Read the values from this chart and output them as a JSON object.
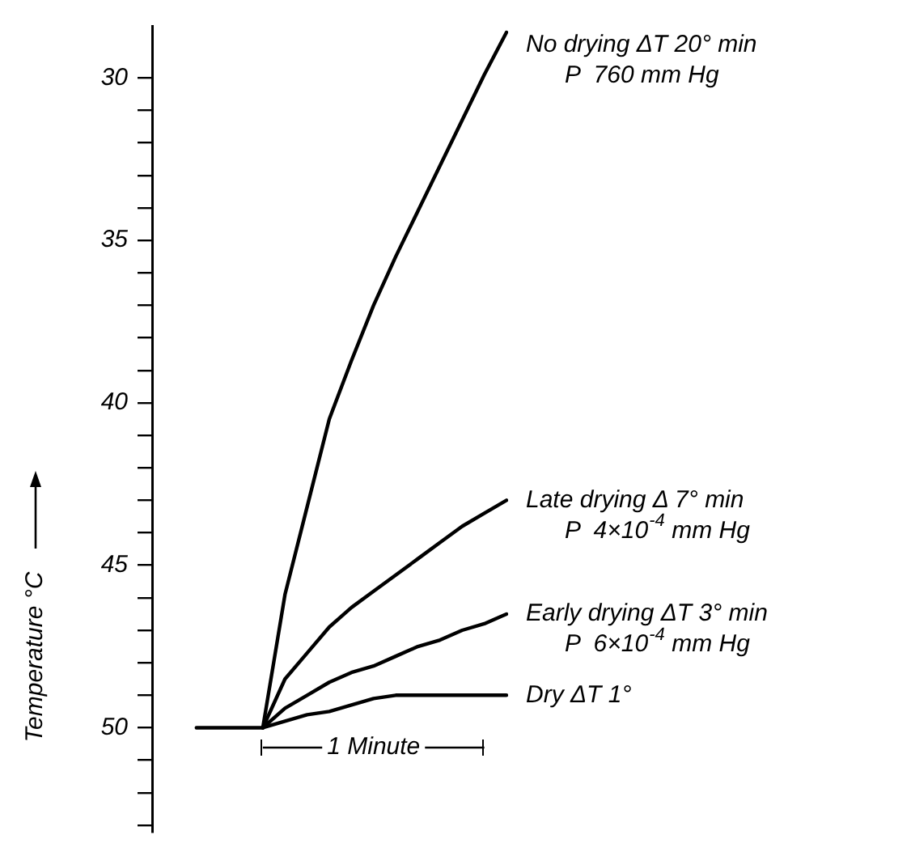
{
  "chart_data": {
    "type": "line",
    "ylabel": "Temperature °C",
    "ylim": [
      53.2,
      28.4
    ],
    "categories": [
      null,
      null,
      null,
      null,
      null,
      null,
      null,
      null,
      null,
      null,
      null,
      null,
      null,
      null,
      null,
      null,
      null
    ],
    "yticks": [
      30,
      {
        "value": 31,
        "label": null
      },
      {
        "value": 32,
        "label": null
      },
      {
        "value": 33,
        "label": null
      },
      {
        "value": 34,
        "label": null
      },
      35,
      {
        "value": 36,
        "label": null
      },
      {
        "value": 37,
        "label": null
      },
      {
        "value": 38,
        "label": null
      },
      {
        "value": 39,
        "label": null
      },
      40,
      {
        "value": 41,
        "label": null
      },
      {
        "value": 42,
        "label": null
      },
      {
        "value": 43,
        "label": null
      },
      {
        "value": 44,
        "label": null
      },
      45,
      {
        "value": 46,
        "label": null
      },
      {
        "value": 47,
        "label": null
      },
      {
        "value": 48,
        "label": null
      },
      {
        "value": 49,
        "label": null
      },
      50,
      {
        "value": 51,
        "label": null
      },
      {
        "value": 52,
        "label": null
      },
      {
        "value": 53,
        "label": null
      }
    ],
    "tick_labels": "y",
    "grid": false,
    "legend": false,
    "marker": "none",
    "line_style": "solid",
    "series": [
      {
        "name": "No drying ΔT 20° min\nP  760 mm Hg",
        "color": "#000000",
        "values": [
          null,
          null,
          null,
          null,
          null,
          50,
          45.9,
          43.2,
          40.5,
          38.7,
          37.0,
          35.5,
          34.1,
          32.7,
          31.3,
          29.9,
          28.6
        ]
      },
      {
        "name": "Late drying Δ 7° min\nP  4×10$^{-4}$ mm Hg",
        "color": "#000000",
        "values": [
          null,
          null,
          null,
          null,
          null,
          50,
          48.5,
          47.7,
          46.9,
          46.3,
          45.8,
          45.3,
          44.8,
          44.3,
          43.8,
          43.4,
          43.0
        ]
      },
      {
        "name": "Early drying ΔT 3° min\nP  6×10$^{-4}$ mm Hg",
        "color": "#000000",
        "values": [
          null,
          null,
          null,
          null,
          null,
          50,
          49.4,
          49.0,
          48.6,
          48.3,
          48.1,
          47.8,
          47.5,
          47.3,
          47.0,
          46.8,
          46.5
        ]
      },
      {
        "name": "Dry ΔT 1°",
        "color": "#000000",
        "values": [
          null,
          null,
          50,
          50,
          50,
          50,
          49.8,
          49.6,
          49.5,
          49.3,
          49.1,
          49.0,
          49.0,
          49.0,
          49.0,
          49.0,
          49.0
        ]
      }
    ],
    "annotations": [
      "1 Minute"
    ]
  }
}
